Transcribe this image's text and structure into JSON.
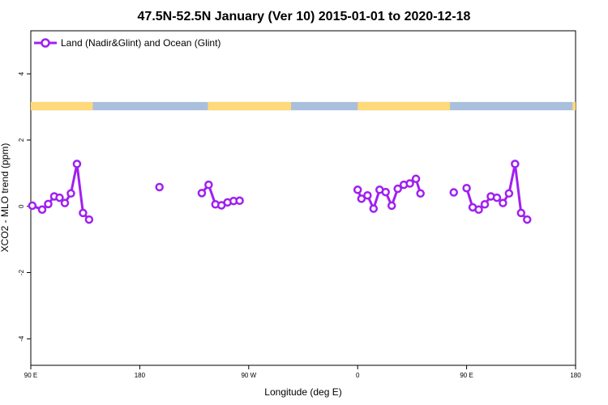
{
  "chart_data": {
    "type": "line",
    "title": "47.5N-52.5N January (Ver 10)   2015-01-01 to 2020-12-18",
    "xlabel": "Longitude (deg E)",
    "ylabel": "XCO2 - MLO trend (ppm)",
    "xlim": [
      90,
      450
    ],
    "ylim": [
      -4.8,
      5.3
    ],
    "x_ticks": [
      {
        "value": 90,
        "label": "90 E"
      },
      {
        "value": 162,
        "label": "180"
      },
      {
        "value": 234,
        "label": "90 W"
      },
      {
        "value": 306,
        "label": "0"
      },
      {
        "value": 378,
        "label": "90 E"
      },
      {
        "value": 450,
        "label": "180"
      }
    ],
    "y_ticks": [
      {
        "value": -4,
        "label": "-4"
      },
      {
        "value": -2,
        "label": "-2"
      },
      {
        "value": 0,
        "label": "0"
      },
      {
        "value": 2,
        "label": "2"
      },
      {
        "value": 4,
        "label": "4"
      }
    ],
    "legend": {
      "position": "top-left"
    },
    "grid": false,
    "land_ocean_strip": {
      "y_range": [
        2.9,
        3.15
      ],
      "land_color": "#ffd97a",
      "ocean_color": "#a9bfdc",
      "land_segments": [
        [
          90,
          131
        ],
        [
          207,
          262
        ],
        [
          306,
          367
        ],
        [
          448,
          450
        ]
      ]
    },
    "series": [
      {
        "name": "Land (Nadir&Glint) and Ocean (Glint)",
        "color": "#a020f0",
        "segments": [
          [
            [
              91,
              0.02
            ],
            [
              97.5,
              -0.1
            ],
            [
              101.5,
              0.07
            ],
            [
              105.5,
              0.3
            ],
            [
              109,
              0.26
            ],
            [
              112.5,
              0.1
            ],
            [
              116.5,
              0.39
            ],
            [
              120.5,
              1.28
            ],
            [
              124.5,
              -0.2
            ],
            [
              128.5,
              -0.4
            ]
          ],
          [
            [
              175,
              0.58
            ]
          ],
          [
            [
              203,
              0.4
            ],
            [
              207.5,
              0.65
            ],
            [
              212,
              0.06
            ],
            [
              216,
              0.03
            ],
            [
              220,
              0.12
            ],
            [
              224,
              0.16
            ],
            [
              228,
              0.17
            ]
          ],
          [
            [
              306,
              0.5
            ],
            [
              308.5,
              0.23
            ],
            [
              312.5,
              0.33
            ],
            [
              316.5,
              -0.07
            ],
            [
              320.5,
              0.5
            ],
            [
              324.5,
              0.43
            ],
            [
              328.5,
              0.02
            ],
            [
              332.5,
              0.53
            ],
            [
              336.5,
              0.65
            ],
            [
              340.5,
              0.69
            ],
            [
              344.5,
              0.83
            ],
            [
              347.5,
              0.39
            ]
          ],
          [
            [
              369.5,
              0.42
            ]
          ],
          [
            [
              378,
              0.55
            ],
            [
              382,
              -0.03
            ],
            [
              386,
              -0.1
            ],
            [
              390,
              0.06
            ],
            [
              394,
              0.3
            ],
            [
              398,
              0.26
            ],
            [
              402,
              0.1
            ],
            [
              406,
              0.39
            ],
            [
              410,
              1.28
            ],
            [
              414,
              -0.2
            ],
            [
              418,
              -0.4
            ]
          ]
        ]
      }
    ]
  }
}
